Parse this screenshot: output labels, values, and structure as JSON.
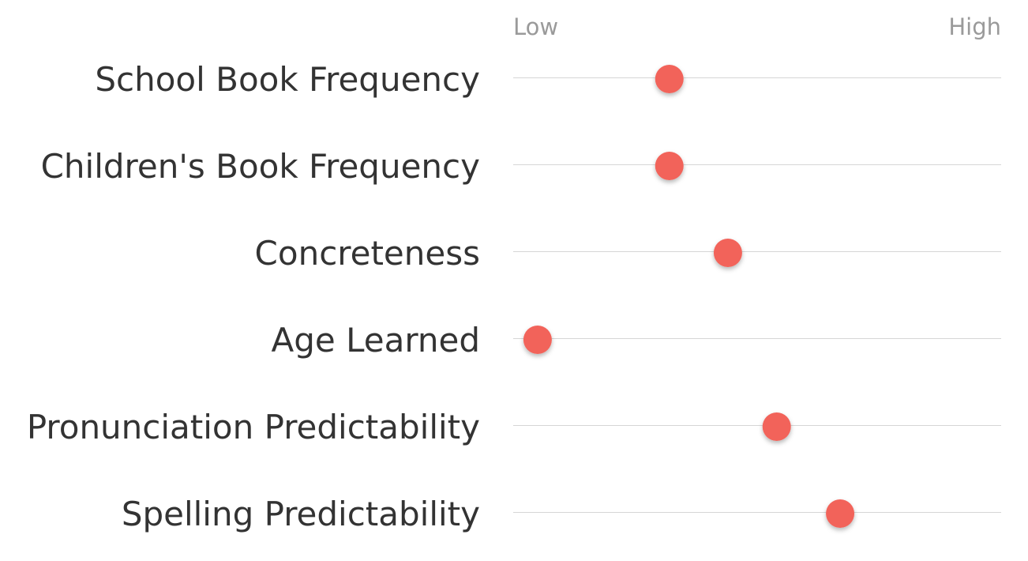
{
  "chart_data": {
    "type": "scatter",
    "title": "",
    "scale": {
      "low_label": "Low",
      "high_label": "High",
      "range": [
        0,
        1
      ]
    },
    "grid": true,
    "legend": "none",
    "marker_color": "#f2635a",
    "rows": [
      {
        "label": "School Book Frequency",
        "value": 0.32
      },
      {
        "label": "Children's Book Frequency",
        "value": 0.32
      },
      {
        "label": "Concreteness",
        "value": 0.44
      },
      {
        "label": "Age Learned",
        "value": 0.05
      },
      {
        "label": "Pronunciation Predictability",
        "value": 0.54
      },
      {
        "label": "Spelling Predictability",
        "value": 0.67
      }
    ]
  }
}
